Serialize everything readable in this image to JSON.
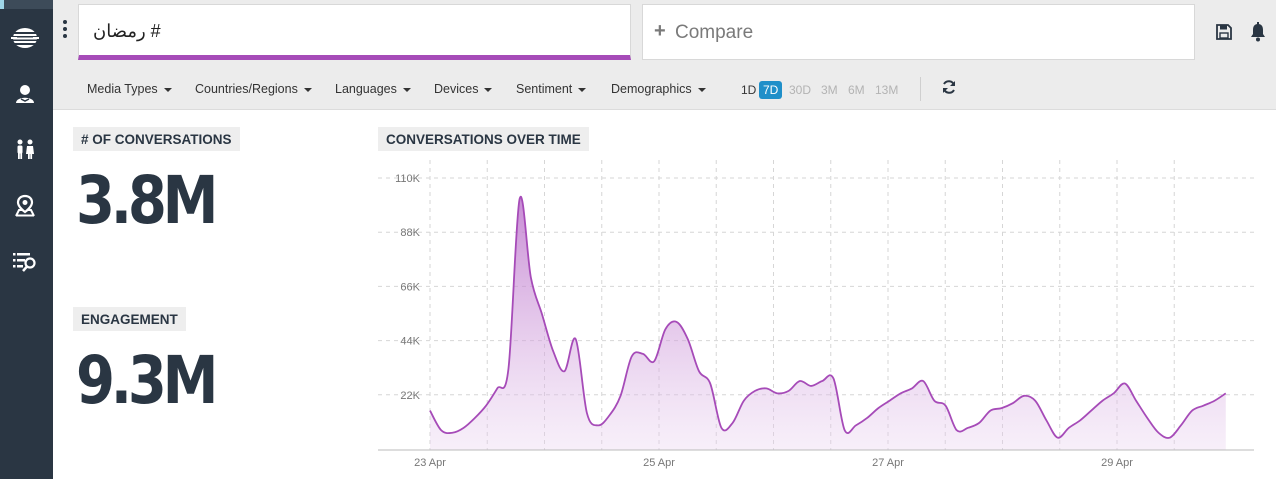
{
  "header": {
    "search_query": "رمضان #",
    "compare_label": "Compare"
  },
  "sidebar": {
    "items": [
      {
        "icon": "brand-logo-icon"
      },
      {
        "icon": "user-profile-icon"
      },
      {
        "icon": "people-icon"
      },
      {
        "icon": "location-pin-icon"
      },
      {
        "icon": "list-search-icon"
      }
    ]
  },
  "filters": {
    "items": [
      "Media Types",
      "Countries/Regions",
      "Languages",
      "Devices",
      "Sentiment",
      "Demographics"
    ],
    "ranges": [
      "1D",
      "7D",
      "30D",
      "3M",
      "6M",
      "13M"
    ],
    "active_range": "7D"
  },
  "metrics": {
    "conversations_label": "# OF CONVERSATIONS",
    "conversations_value": "3.8M",
    "engagement_label": "ENGAGEMENT",
    "engagement_value": "9.3M"
  },
  "colors": {
    "sidebar": "#2a3643",
    "accent": "#a64bb8",
    "active_range": "#1f8fc9",
    "line": "#a64bb8"
  },
  "chart_data": {
    "type": "area",
    "title": "CONVERSATIONS OVER TIME",
    "xlabel": "",
    "ylabel": "",
    "grid": true,
    "x_start": "23 Apr",
    "x_end": "29 Apr",
    "x_ticks": [
      "23 Apr",
      "25 Apr",
      "27 Apr",
      "29 Apr"
    ],
    "y_ticks": [
      "110K",
      "88K",
      "66K",
      "44K",
      "22K"
    ],
    "ylim": [
      0,
      110000
    ],
    "series": [
      {
        "values": [
          16000,
          8000,
          7000,
          9000,
          13000,
          18000,
          25000,
          33000,
          102000,
          70000,
          55000,
          40000,
          32000,
          45000,
          15000,
          10000,
          14000,
          22000,
          38000,
          39000,
          36000,
          49000,
          52000,
          45000,
          32000,
          27000,
          9000,
          11000,
          20000,
          24000,
          25000,
          23000,
          24000,
          28000,
          26000,
          28000,
          29000,
          8000,
          10000,
          13000,
          17000,
          20000,
          23000,
          25000,
          28000,
          20000,
          18000,
          8000,
          9000,
          11000,
          16000,
          17000,
          19000,
          22000,
          20000,
          12000,
          5000,
          9000,
          12000,
          16000,
          20000,
          23000,
          27000,
          20000,
          13000,
          7000,
          5000,
          10000,
          16000,
          18000,
          20000,
          23000
        ]
      }
    ]
  }
}
